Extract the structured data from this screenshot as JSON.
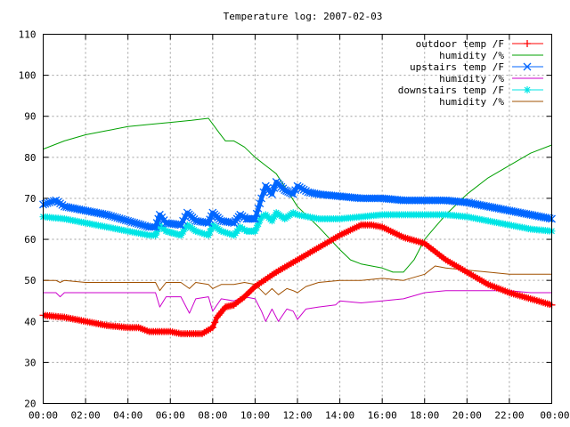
{
  "chart_data": {
    "type": "line",
    "title": "Temperature log: 2007-02-03",
    "xlabel": "",
    "ylabel": "",
    "xlim": [
      0,
      24
    ],
    "ylim": [
      20,
      110
    ],
    "x_tick_labels": [
      "00:00",
      "02:00",
      "04:00",
      "06:00",
      "08:00",
      "10:00",
      "12:00",
      "14:00",
      "16:00",
      "18:00",
      "20:00",
      "22:00",
      "00:00"
    ],
    "y_tick_labels": [
      "20",
      "30",
      "40",
      "50",
      "60",
      "70",
      "80",
      "90",
      "100",
      "110"
    ],
    "grid": true,
    "legend_position": "top-right",
    "series": [
      {
        "name": "outdoor temp /F",
        "color": "#ff0000",
        "marker": "plus",
        "points": [
          [
            0,
            41.5
          ],
          [
            1,
            41
          ],
          [
            2,
            40
          ],
          [
            3,
            39
          ],
          [
            4,
            38.5
          ],
          [
            4.5,
            38.5
          ],
          [
            5,
            37.5
          ],
          [
            6,
            37.5
          ],
          [
            6.5,
            37
          ],
          [
            7,
            37
          ],
          [
            7.5,
            37
          ],
          [
            8,
            38.5
          ],
          [
            8.2,
            41
          ],
          [
            8.6,
            43.5
          ],
          [
            9,
            44
          ],
          [
            9.5,
            46
          ],
          [
            10,
            48.5
          ],
          [
            11,
            52
          ],
          [
            12,
            55
          ],
          [
            13,
            58
          ],
          [
            14,
            61
          ],
          [
            15,
            63.5
          ],
          [
            15.5,
            63.5
          ],
          [
            16,
            63
          ],
          [
            17,
            60.5
          ],
          [
            18,
            59
          ],
          [
            19,
            55
          ],
          [
            20,
            52
          ],
          [
            21,
            49
          ],
          [
            22,
            47
          ],
          [
            23,
            45.5
          ],
          [
            24,
            44
          ]
        ]
      },
      {
        "name": "humidity /%",
        "color": "#00a000",
        "marker": "none",
        "points": [
          [
            0,
            82
          ],
          [
            1,
            84
          ],
          [
            2,
            85.5
          ],
          [
            3,
            86.5
          ],
          [
            4,
            87.5
          ],
          [
            5,
            88
          ],
          [
            6,
            88.5
          ],
          [
            7,
            89
          ],
          [
            7.8,
            89.5
          ],
          [
            8.3,
            86
          ],
          [
            8.6,
            84
          ],
          [
            9,
            84
          ],
          [
            9.5,
            82.5
          ],
          [
            10,
            80
          ],
          [
            10.5,
            78
          ],
          [
            11,
            76
          ],
          [
            11.5,
            72
          ],
          [
            12,
            68
          ],
          [
            13,
            63
          ],
          [
            14,
            57.5
          ],
          [
            14.5,
            55
          ],
          [
            15,
            54
          ],
          [
            16,
            53
          ],
          [
            16.5,
            52
          ],
          [
            17,
            52
          ],
          [
            17.5,
            55
          ],
          [
            18,
            60
          ],
          [
            18.5,
            63
          ],
          [
            19,
            66
          ],
          [
            20,
            71
          ],
          [
            21,
            75
          ],
          [
            22,
            78
          ],
          [
            23,
            81
          ],
          [
            24,
            83
          ]
        ]
      },
      {
        "name": "upstairs temp /F",
        "color": "#0066ff",
        "marker": "x",
        "points": [
          [
            0,
            68.5
          ],
          [
            0.6,
            69.5
          ],
          [
            1,
            68
          ],
          [
            2,
            67
          ],
          [
            3,
            66
          ],
          [
            4,
            64.5
          ],
          [
            5,
            63
          ],
          [
            5.3,
            63
          ],
          [
            5.5,
            66
          ],
          [
            5.8,
            64
          ],
          [
            6.5,
            63.5
          ],
          [
            6.8,
            66.5
          ],
          [
            7.2,
            64.5
          ],
          [
            7.8,
            64
          ],
          [
            8,
            66.5
          ],
          [
            8.4,
            64.5
          ],
          [
            9,
            64
          ],
          [
            9.3,
            66
          ],
          [
            9.6,
            65
          ],
          [
            10,
            65
          ],
          [
            10.3,
            70
          ],
          [
            10.5,
            73
          ],
          [
            10.8,
            71
          ],
          [
            11,
            74
          ],
          [
            11.4,
            72
          ],
          [
            11.8,
            71
          ],
          [
            12,
            73
          ],
          [
            12.5,
            71.5
          ],
          [
            13,
            71
          ],
          [
            14,
            70.5
          ],
          [
            15,
            70
          ],
          [
            16,
            70
          ],
          [
            17,
            69.5
          ],
          [
            18,
            69.5
          ],
          [
            19,
            69.5
          ],
          [
            20,
            69
          ],
          [
            21,
            68
          ],
          [
            22,
            67
          ],
          [
            23,
            66
          ],
          [
            24,
            65
          ]
        ]
      },
      {
        "name": "humidity /%",
        "color": "#cc00cc",
        "marker": "none",
        "points": [
          [
            0,
            47
          ],
          [
            0.6,
            47
          ],
          [
            0.8,
            46
          ],
          [
            1,
            47
          ],
          [
            2,
            47
          ],
          [
            3,
            47
          ],
          [
            4,
            47
          ],
          [
            5.3,
            47
          ],
          [
            5.5,
            43.5
          ],
          [
            5.8,
            46
          ],
          [
            6.5,
            46
          ],
          [
            6.9,
            42
          ],
          [
            7.2,
            45.5
          ],
          [
            7.8,
            46
          ],
          [
            8,
            42.5
          ],
          [
            8.4,
            45.5
          ],
          [
            9,
            45
          ],
          [
            9.5,
            46
          ],
          [
            10,
            45.5
          ],
          [
            10.3,
            42.5
          ],
          [
            10.5,
            40
          ],
          [
            10.8,
            43
          ],
          [
            11.1,
            40
          ],
          [
            11.5,
            43
          ],
          [
            11.8,
            42.5
          ],
          [
            12,
            40.5
          ],
          [
            12.4,
            43
          ],
          [
            13,
            43.5
          ],
          [
            13.8,
            44
          ],
          [
            14,
            45
          ],
          [
            15,
            44.5
          ],
          [
            16,
            45
          ],
          [
            17,
            45.5
          ],
          [
            18,
            47
          ],
          [
            19,
            47.5
          ],
          [
            20,
            47.5
          ],
          [
            21,
            47.5
          ],
          [
            22,
            47.5
          ],
          [
            23,
            47
          ],
          [
            24,
            47
          ]
        ]
      },
      {
        "name": "downstairs temp /F",
        "color": "#00e5e5",
        "marker": "star",
        "points": [
          [
            0,
            65.5
          ],
          [
            1,
            65
          ],
          [
            2,
            64
          ],
          [
            3,
            63
          ],
          [
            4,
            62
          ],
          [
            5,
            61
          ],
          [
            5.3,
            61
          ],
          [
            5.5,
            63.5
          ],
          [
            5.8,
            62
          ],
          [
            6.5,
            61
          ],
          [
            6.8,
            63.5
          ],
          [
            7.2,
            62
          ],
          [
            7.8,
            61
          ],
          [
            8,
            63.5
          ],
          [
            8.4,
            62
          ],
          [
            9,
            61
          ],
          [
            9.3,
            63
          ],
          [
            9.6,
            62
          ],
          [
            10,
            62
          ],
          [
            10.3,
            65.5
          ],
          [
            10.5,
            66
          ],
          [
            10.8,
            64.5
          ],
          [
            11,
            66.5
          ],
          [
            11.4,
            65
          ],
          [
            11.8,
            66.5
          ],
          [
            12,
            66
          ],
          [
            12.5,
            65.5
          ],
          [
            13,
            65
          ],
          [
            14,
            65
          ],
          [
            15,
            65.5
          ],
          [
            16,
            66
          ],
          [
            17,
            66
          ],
          [
            18,
            66
          ],
          [
            19,
            66
          ],
          [
            20,
            65.5
          ],
          [
            21,
            64.5
          ],
          [
            22,
            63.5
          ],
          [
            23,
            62.5
          ],
          [
            24,
            62
          ]
        ]
      },
      {
        "name": "humidity /%",
        "color": "#a05000",
        "marker": "none",
        "points": [
          [
            0,
            50
          ],
          [
            0.6,
            50
          ],
          [
            0.8,
            49.5
          ],
          [
            1,
            50
          ],
          [
            2,
            49.5
          ],
          [
            3,
            49.5
          ],
          [
            4,
            49.5
          ],
          [
            5.3,
            49.5
          ],
          [
            5.5,
            47.5
          ],
          [
            5.8,
            49.5
          ],
          [
            6.5,
            49.5
          ],
          [
            6.9,
            48
          ],
          [
            7.2,
            49.5
          ],
          [
            7.8,
            49
          ],
          [
            8,
            48
          ],
          [
            8.4,
            49
          ],
          [
            9,
            49
          ],
          [
            9.5,
            49.5
          ],
          [
            10,
            49
          ],
          [
            10.3,
            47.5
          ],
          [
            10.5,
            46.5
          ],
          [
            10.8,
            48
          ],
          [
            11.1,
            46.5
          ],
          [
            11.5,
            48
          ],
          [
            11.8,
            47.5
          ],
          [
            12,
            47
          ],
          [
            12.4,
            48.5
          ],
          [
            13,
            49.5
          ],
          [
            14,
            50
          ],
          [
            15,
            50
          ],
          [
            16,
            50.5
          ],
          [
            17,
            50
          ],
          [
            18,
            51.5
          ],
          [
            18.5,
            53.5
          ],
          [
            19,
            53
          ],
          [
            20,
            52.5
          ],
          [
            21,
            52
          ],
          [
            22,
            51.5
          ],
          [
            23,
            51.5
          ],
          [
            24,
            51.5
          ]
        ]
      }
    ]
  }
}
